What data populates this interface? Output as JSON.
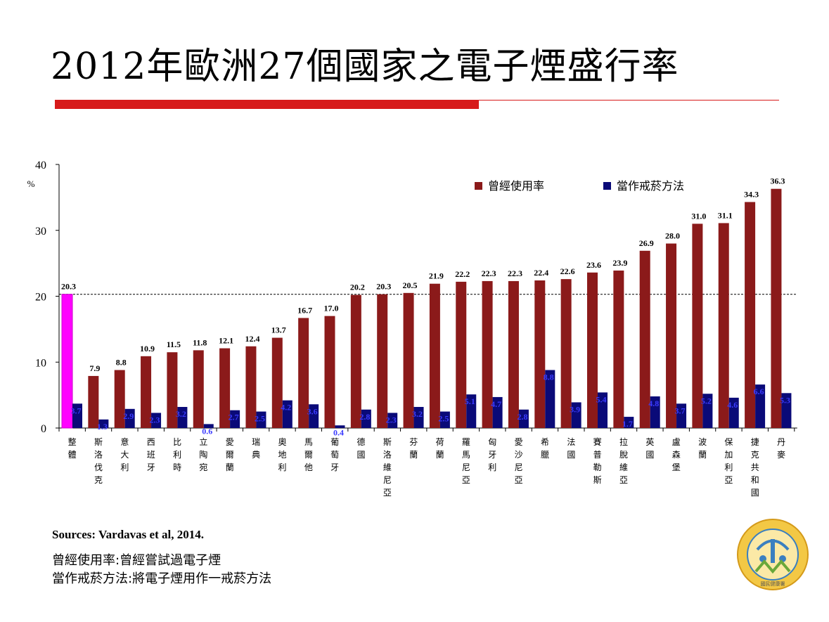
{
  "title": "2012年歐洲27個國家之電子煙盛行率",
  "colors": {
    "ever_use": "#8b1a1a",
    "quit_method": "#0a0a78",
    "overall": "#ff00ff",
    "rule": "#d71a1a",
    "quit_label": "#3b3bff"
  },
  "chart_data": {
    "type": "bar",
    "ylabel": "%",
    "ylim": [
      0,
      40
    ],
    "yticks": [
      "0",
      "10",
      "20",
      "30",
      "40"
    ],
    "reference_line": 20.3,
    "legend_position": "top-right",
    "categories": [
      "整體",
      "斯洛伐克",
      "意大利",
      "西班牙",
      "比利時",
      "立陶宛",
      "愛爾蘭",
      "瑞典",
      "奧地利",
      "馬爾他",
      "葡萄牙",
      "德國",
      "斯洛維尼亞",
      "芬蘭",
      "荷蘭",
      "羅馬尼亞",
      "匈牙利",
      "愛沙尼亞",
      "希臘",
      "法國",
      "賽普勒斯",
      "拉脫維亞",
      "英國",
      "盧森堡",
      "波蘭",
      "保加利亞",
      "捷克共和國",
      "丹麥"
    ],
    "series": [
      {
        "name": "曾經使用率",
        "values": [
          20.3,
          7.9,
          8.8,
          10.9,
          11.5,
          11.8,
          12.1,
          12.4,
          13.7,
          16.7,
          17.0,
          20.2,
          20.3,
          20.5,
          21.9,
          22.2,
          22.3,
          22.3,
          22.4,
          22.6,
          23.6,
          23.9,
          26.9,
          28.0,
          31.0,
          31.1,
          34.3,
          36.3
        ],
        "labels": [
          "20.3",
          "7.9",
          "8.8",
          "10.9",
          "11.5",
          "11.8",
          "12.1",
          "12.4",
          "13.7",
          "16.7",
          "17.0",
          "20.2",
          "20.3",
          "20.5",
          "21.9",
          "22.2",
          "22.3",
          "22.3",
          "22.4",
          "22.6",
          "23.6",
          "23.9",
          "26.9",
          "28.0",
          "31.0",
          "31.1",
          "34.3",
          "36.3"
        ]
      },
      {
        "name": "當作戒菸方法",
        "values": [
          3.7,
          1.3,
          2.9,
          2.3,
          3.2,
          0.6,
          2.7,
          2.5,
          4.2,
          3.6,
          0.4,
          2.8,
          2.3,
          3.2,
          2.5,
          5.1,
          4.7,
          2.8,
          8.8,
          3.9,
          5.4,
          1.7,
          4.8,
          3.7,
          5.2,
          4.6,
          6.6,
          5.3
        ],
        "labels": [
          "3.7",
          "1.3",
          "2.9",
          "2.3",
          "3.2",
          "0.6",
          "2.7",
          "2.5",
          "4.2",
          "3.6",
          "0.4",
          "2.8",
          "2.3",
          "3.2",
          "2.5",
          "5.1",
          "4.7",
          "2.8",
          "8.8",
          "3.9",
          "5.4",
          "1.7",
          "4.8",
          "3.7",
          "5.2",
          "4.6",
          "6.6",
          "5.3"
        ]
      }
    ]
  },
  "sources": "Sources: Vardavas et al, 2014.",
  "notes": [
    "曾經使用率:曾經嘗試過電子煙",
    "當作戒菸方法:將電子煙用作一戒菸方法"
  ],
  "logo": {
    "icon": "health-bureau-seal-icon",
    "text": "國民健康署"
  }
}
